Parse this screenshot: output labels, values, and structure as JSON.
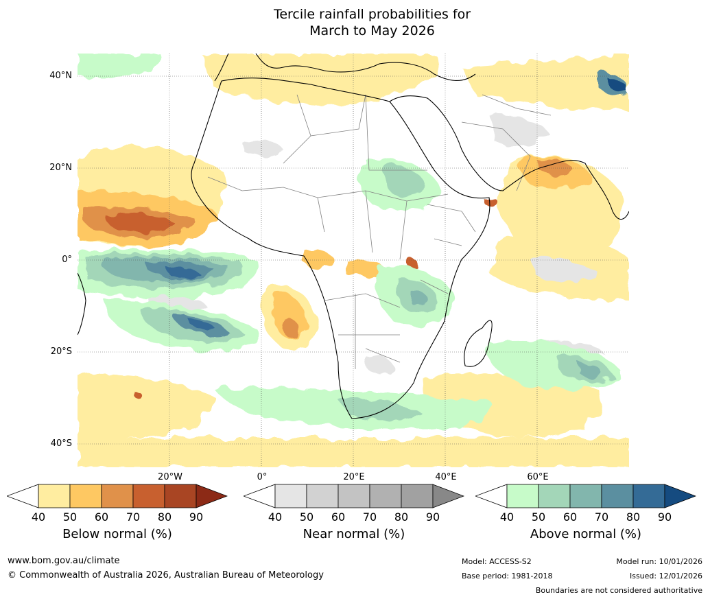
{
  "title": {
    "line1": "Tercile rainfall probabilities for",
    "line2": "March to May 2026"
  },
  "map": {
    "lat_labels": [
      "40°N",
      "20°N",
      "0°",
      "20°S",
      "40°S"
    ],
    "lon_labels": [
      "20°W",
      "0°",
      "20°E",
      "40°E",
      "60°E"
    ],
    "colors": {
      "below": [
        "#ffeda0",
        "#fec862",
        "#e0914a",
        "#c8602f",
        "#a94523",
        "#8c2a16"
      ],
      "near": [
        "#e5e5e5",
        "#d2d2d2",
        "#c3c3c3",
        "#b1b1b1",
        "#a1a1a1",
        "#888888"
      ],
      "above": [
        "#c7fbc9",
        "#a3d6b8",
        "#82b6ad",
        "#5b8fa0",
        "#346b96",
        "#154b80"
      ],
      "land_border": "#000000",
      "country_border": "#808080"
    }
  },
  "colorbars": {
    "ticks": [
      "40",
      "50",
      "60",
      "70",
      "80",
      "90"
    ],
    "below_title": "Below normal (%)",
    "near_title": "Near normal (%)",
    "above_title": "Above normal (%)"
  },
  "footer": {
    "url": "www.bom.gov.au/climate",
    "copyright": "© Commonwealth of Australia 2026, Australian Bureau of Meteorology",
    "model": "Model: ACCESS-S2",
    "base_period": "Base period: 1981-2018",
    "model_run": "Model run: 10/01/2026",
    "issued": "Issued: 12/01/2026",
    "disclaimer": "Boundaries are not considered authoritative"
  }
}
